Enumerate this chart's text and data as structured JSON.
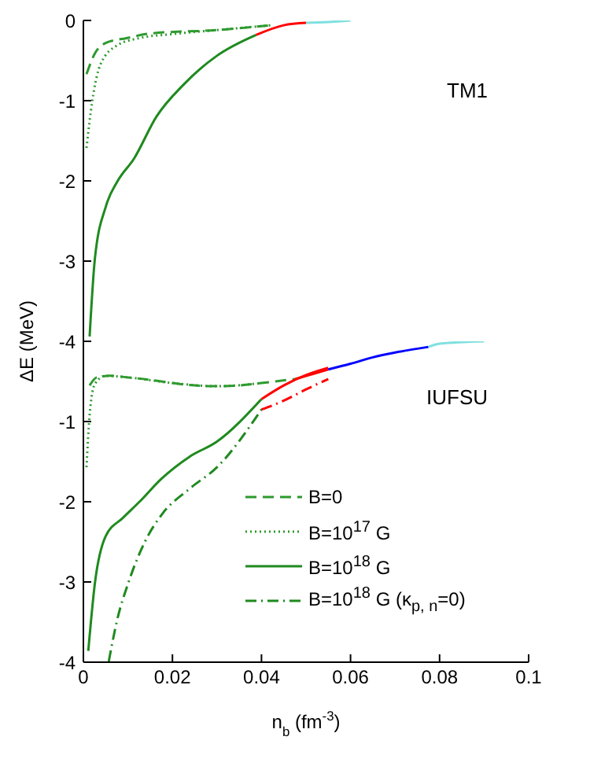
{
  "chart_data": [
    {
      "type": "line",
      "ylabel": "ΔE (MeV)",
      "annotations": [
        "TM1"
      ],
      "xlim": [
        0,
        0.1
      ],
      "xticks": [
        0,
        0.02,
        0.04,
        0.06,
        0.08,
        0.1
      ],
      "ylim": [
        -4,
        0
      ],
      "yticks": [
        0,
        -1,
        -2,
        -3,
        -4
      ],
      "tick_labels": "y",
      "series": [
        {
          "color": "#2e9a2e",
          "line_style": "dashed",
          "x": [
            0.0007,
            0.0026,
            0.005,
            0.0097,
            0.0154,
            0.03,
            0.042
          ],
          "values": [
            -0.67,
            -0.41,
            -0.28,
            -0.22,
            -0.16,
            -0.12,
            -0.06
          ]
        },
        {
          "color": "#2e9a2e",
          "line_style": "dotted",
          "x": [
            0.0007,
            0.002,
            0.0039,
            0.0076,
            0.0126,
            0.02,
            0.03,
            0.042
          ],
          "values": [
            -1.59,
            -1.0,
            -0.54,
            -0.31,
            -0.22,
            -0.17,
            -0.12,
            -0.06
          ]
        },
        {
          "color": "#1f8a1f",
          "line_style": "solid",
          "x": [
            0.0014,
            0.0026,
            0.0051,
            0.0076,
            0.0114,
            0.0164,
            0.0225,
            0.03,
            0.0388
          ],
          "values": [
            -3.94,
            -2.96,
            -2.31,
            -2.01,
            -1.72,
            -1.2,
            -0.8,
            -0.44,
            -0.18
          ]
        },
        {
          "color": "#ff0000",
          "line_style": "solid",
          "x": [
            0.0388,
            0.045,
            0.05
          ],
          "values": [
            -0.18,
            -0.06,
            -0.03
          ]
        },
        {
          "color": "#80e0e0",
          "line_style": "solid",
          "x": [
            0.05,
            0.055,
            0.06
          ],
          "values": [
            -0.03,
            -0.02,
            0
          ]
        }
      ]
    },
    {
      "type": "line",
      "xlabel": "n$_{b}$ (fm$^{-3}$)",
      "annotations": [
        "IUFSU"
      ],
      "xlim": [
        0,
        0.1
      ],
      "xticks": [
        0,
        0.02,
        0.04,
        0.06,
        0.08,
        0.1
      ],
      "ylim": [
        -4,
        0
      ],
      "yticks": [
        {
          "value": 0,
          "label": null
        },
        -1,
        -2,
        -3,
        -4
      ],
      "legend": "bottom right",
      "series": [
        {
          "name": "B=0",
          "color": "#2e9a2e",
          "line_style": "dashed",
          "x": [
            0.0014,
            0.003,
            0.006,
            0.01,
            0.015,
            0.02,
            0.025,
            0.03,
            0.035,
            0.04,
            0.0476
          ],
          "values": [
            -0.55,
            -0.45,
            -0.43,
            -0.45,
            -0.48,
            -0.52,
            -0.55,
            -0.56,
            -0.55,
            -0.52,
            -0.47
          ]
        },
        {
          "name": "B=10$^{17}$ G",
          "color": "#2e9a2e",
          "line_style": "dotted",
          "x": [
            0.0007,
            0.0014,
            0.0026,
            0.005,
            0.01,
            0.02,
            0.03,
            0.04
          ],
          "values": [
            -1.57,
            -0.92,
            -0.53,
            -0.43,
            -0.45,
            -0.52,
            -0.56,
            -0.52
          ]
        },
        {
          "name": "B=10$^{18}$ G",
          "color": "#1f8a1f",
          "line_style": "solid",
          "x": [
            0.0011,
            0.0026,
            0.005,
            0.0089,
            0.0126,
            0.0176,
            0.0238,
            0.03,
            0.04
          ],
          "values": [
            -3.86,
            -3.01,
            -2.43,
            -2.2,
            -2.0,
            -1.71,
            -1.44,
            -1.25,
            -0.72
          ]
        },
        {
          "name": "B=10$^{18}$ G (κ$_{p, n}$=0)",
          "color": "#1f8a1f",
          "line_style": "dashdot",
          "x": [
            0.0057,
            0.0076,
            0.0101,
            0.0139,
            0.0176,
            0.0238,
            0.03,
            0.04
          ],
          "values": [
            -3.99,
            -3.47,
            -3.01,
            -2.49,
            -2.16,
            -1.84,
            -1.57,
            -0.85
          ]
        },
        {
          "color": "#ff0000",
          "line_style": "solid",
          "x": [
            0.0476,
            0.052,
            0.055
          ],
          "values": [
            -0.47,
            -0.4,
            -0.35
          ]
        },
        {
          "color": "#ff0000",
          "line_style": "solid",
          "x": [
            0.04,
            0.045,
            0.05,
            0.055
          ],
          "values": [
            -0.72,
            -0.55,
            -0.42,
            -0.33
          ]
        },
        {
          "color": "#ff0000",
          "line_style": "dashdot",
          "x": [
            0.04,
            0.045,
            0.05,
            0.055
          ],
          "values": [
            -0.85,
            -0.74,
            -0.6,
            -0.47
          ]
        },
        {
          "color": "#0000ff",
          "line_style": "solid",
          "x": [
            0.055,
            0.06,
            0.065,
            0.07,
            0.0775
          ],
          "values": [
            -0.35,
            -0.28,
            -0.2,
            -0.14,
            -0.07
          ]
        },
        {
          "color": "#80e0e0",
          "line_style": "solid",
          "x": [
            0.0775,
            0.08,
            0.09
          ],
          "values": [
            -0.07,
            -0.03,
            0
          ]
        }
      ]
    }
  ]
}
